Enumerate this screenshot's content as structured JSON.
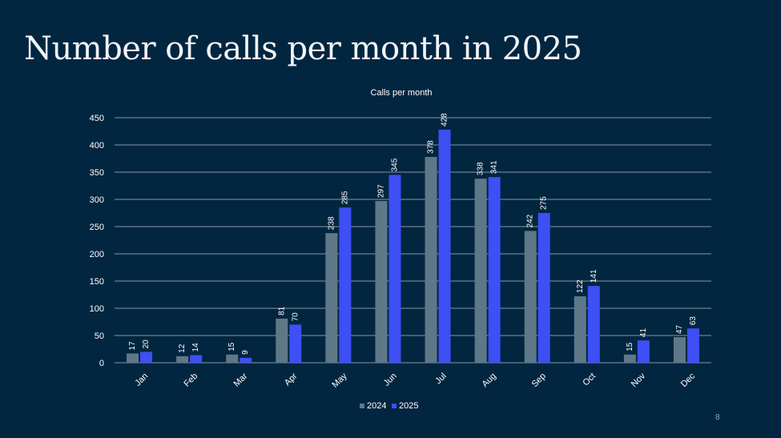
{
  "slide": {
    "title": "Number of calls per month in 2025",
    "page_number": "8"
  },
  "colors": {
    "background": "#022640",
    "series_2024": "#5f7888",
    "series_2025": "#3d4ff5",
    "gridline": "#8796a3",
    "text": "#ffffff"
  },
  "chart_data": {
    "type": "bar",
    "title": "Calls per month",
    "categories": [
      "Jan",
      "Feb",
      "Mar",
      "Apr",
      "May",
      "Jun",
      "Jul",
      "Aug",
      "Sep",
      "Oct",
      "Nov",
      "Dec"
    ],
    "series": [
      {
        "name": "2024",
        "values": [
          17,
          12,
          15,
          81,
          238,
          297,
          378,
          338,
          242,
          122,
          15,
          47
        ]
      },
      {
        "name": "2025",
        "values": [
          20,
          14,
          9,
          70,
          285,
          345,
          428,
          341,
          275,
          141,
          41,
          63
        ]
      }
    ],
    "yticks": [
      "0",
      "50",
      "100",
      "150",
      "200",
      "250",
      "300",
      "350",
      "400",
      "450"
    ],
    "ylim": [
      0,
      450
    ],
    "grid": true,
    "legend_position": "bottom",
    "data_labels": true
  }
}
